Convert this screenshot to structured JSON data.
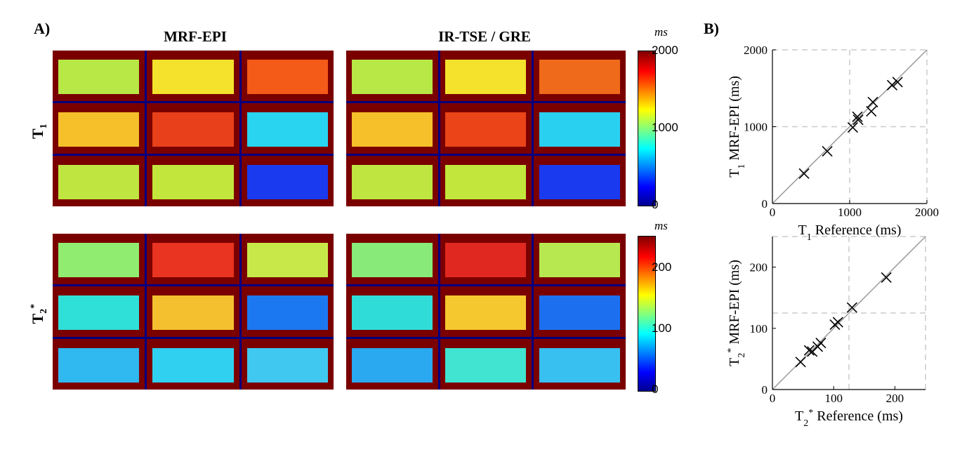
{
  "panel_a_label": "A)",
  "panel_b_label": "B)",
  "col_titles": [
    "MRF-EPI",
    "IR-TSE / GRE"
  ],
  "row_labels": [
    "T1",
    "T2*"
  ],
  "colorbar_t1": {
    "unit": "ms",
    "ticks": [
      "2000",
      "1000",
      "0"
    ]
  },
  "colorbar_t2": {
    "unit": "ms",
    "ticks": [
      "200",
      "100",
      "0"
    ]
  },
  "maps": {
    "t1_mrf": [
      "#b8e845",
      "#f4e22c",
      "#f45a18",
      "#f5c02a",
      "#e8401a",
      "#28d4f0",
      "#bfe640",
      "#c2e63c",
      "#1a3af0"
    ],
    "t1_ref": [
      "#b8e845",
      "#f4e22c",
      "#f06a1c",
      "#f5c02a",
      "#ea4418",
      "#2ad0f0",
      "#bfe640",
      "#c2e63c",
      "#1a3af0"
    ],
    "t2_mrf": [
      "#90ec70",
      "#e83420",
      "#c8e84a",
      "#2ee0d8",
      "#f5c030",
      "#1c78f0",
      "#30b8f0",
      "#30d0f0",
      "#40c8f0"
    ],
    "t2_ref": [
      "#88ea78",
      "#e02820",
      "#b8e850",
      "#30dcd8",
      "#f5c830",
      "#1c70f0",
      "#2aa8f0",
      "#40e4d0",
      "#38c0f0"
    ]
  },
  "chart_data": [
    {
      "type": "scatter",
      "xlabel": "T1 Reference (ms)",
      "ylabel": "T1 MRF-EPI (ms)",
      "xlim": [
        0,
        2000
      ],
      "ylim": [
        0,
        2000
      ],
      "x_ticks": [
        "0",
        "1000",
        "2000"
      ],
      "y_ticks": [
        "0",
        "1000",
        "2000"
      ],
      "grid": true,
      "identity_line": true,
      "x": [
        410,
        710,
        1040,
        1100,
        1110,
        1280,
        1300,
        1550,
        1620
      ],
      "y": [
        390,
        680,
        990,
        1130,
        1090,
        1200,
        1320,
        1540,
        1580
      ]
    },
    {
      "type": "scatter",
      "xlabel": "T2* Reference (ms)",
      "ylabel": "T2* MRF-EPI (ms)",
      "xlim": [
        0,
        250
      ],
      "ylim": [
        0,
        250
      ],
      "x_ticks": [
        "0",
        "100",
        "200"
      ],
      "y_ticks": [
        "0",
        "100",
        "200"
      ],
      "grid": true,
      "identity_line": true,
      "x": [
        46,
        60,
        65,
        74,
        79,
        102,
        107,
        130,
        186
      ],
      "y": [
        45,
        64,
        62,
        70,
        76,
        106,
        110,
        134,
        183
      ]
    }
  ]
}
